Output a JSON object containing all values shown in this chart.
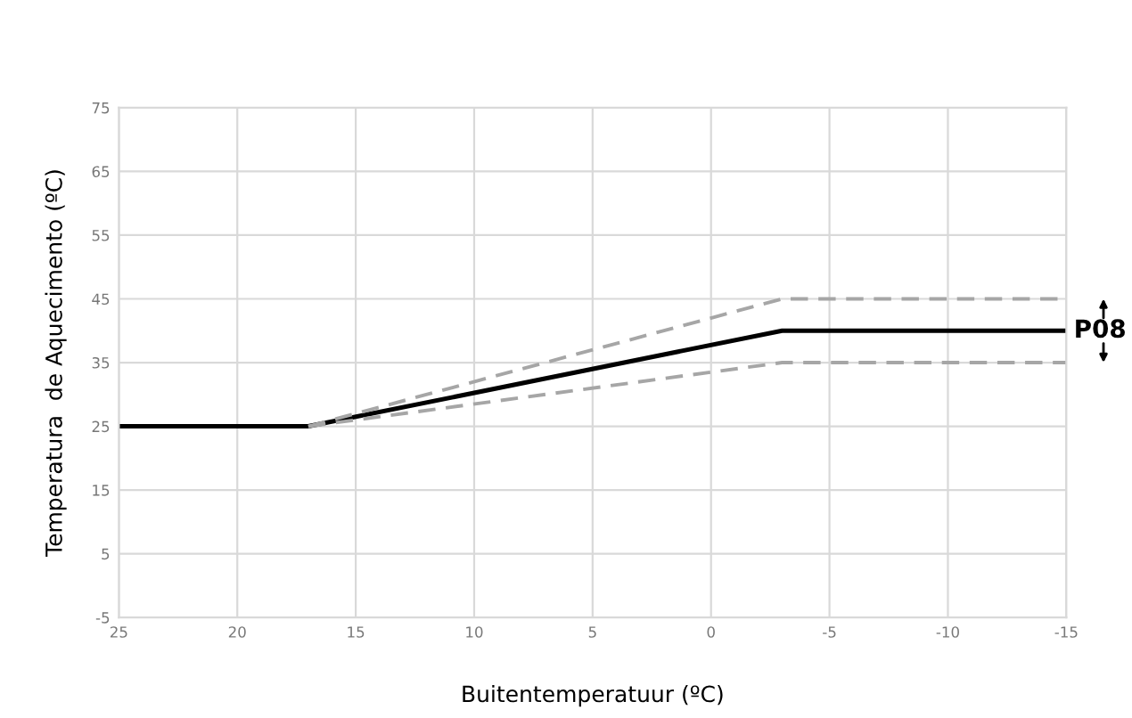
{
  "chart_data": {
    "type": "line",
    "xlabel": "Buitentemperatuur (ºC)",
    "ylabel": "Temperatura  de Aquecimento (ºC)",
    "xlim": [
      25,
      -15
    ],
    "xticks": [
      25,
      20,
      15,
      10,
      5,
      0,
      -5,
      -10,
      -15
    ],
    "ylim": [
      -5,
      75
    ],
    "yticks": [
      -5,
      5,
      15,
      25,
      35,
      45,
      55,
      65,
      75
    ],
    "grid": true,
    "marker": "none",
    "series": [
      {
        "color": "#000000",
        "line_style": "solid",
        "x": [
          25,
          17,
          -3,
          -15
        ],
        "values": [
          25,
          25,
          40,
          40
        ]
      },
      {
        "color": "#a6a6a6",
        "line_style": "dashed",
        "x": [
          17,
          -3,
          -15
        ],
        "values": [
          25,
          45,
          45
        ]
      },
      {
        "color": "#a6a6a6",
        "line_style": "dashed",
        "x": [
          17,
          -3,
          -15
        ],
        "values": [
          25,
          35,
          35
        ]
      }
    ],
    "annotations": [
      {
        "text": "P08",
        "x": -15,
        "y": 40
      }
    ]
  }
}
